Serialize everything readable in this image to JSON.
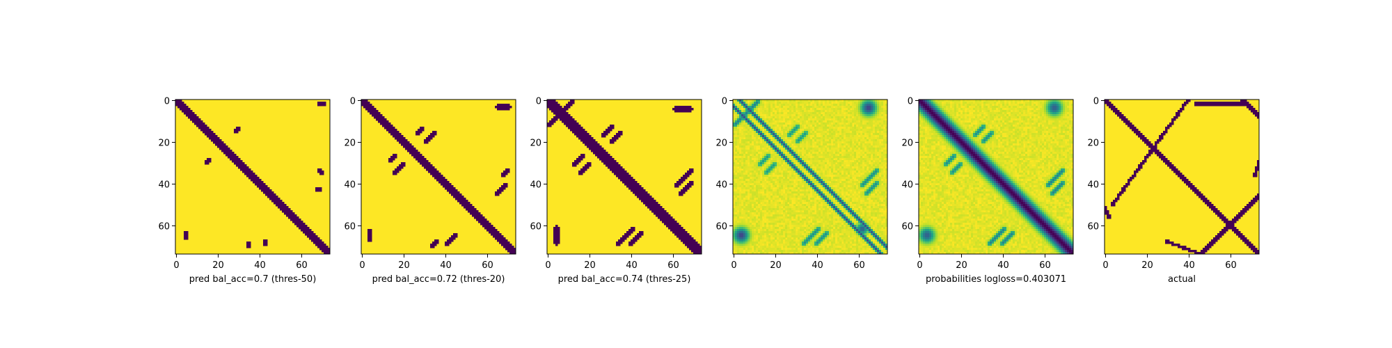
{
  "chart_data": [
    {
      "type": "heatmap",
      "variant": "binary",
      "xlabel": "pred bal_acc=0.7 (thres-50)",
      "xticks": [
        0,
        20,
        40,
        60
      ],
      "yticks": [
        0,
        20,
        40,
        60
      ],
      "xlim": [
        0,
        74
      ],
      "ylim": [
        74,
        0
      ],
      "grid_size": 74,
      "colors": {
        "high": "#fde725",
        "low": "#440154"
      },
      "diagonal_halfwidth": 2,
      "blobs": [
        [
          70,
          2,
          2,
          1
        ],
        [
          5,
          65,
          1.3,
          2.5
        ]
      ],
      "segments": [
        [
          29,
          15,
          30,
          14
        ],
        [
          16,
          29,
          15,
          30
        ],
        [
          69,
          34,
          70,
          35
        ],
        [
          68,
          43,
          69,
          43
        ],
        [
          35,
          69,
          35,
          70
        ],
        [
          43,
          68,
          43,
          69
        ]
      ]
    },
    {
      "type": "heatmap",
      "variant": "binary",
      "xlabel": "pred bal_acc=0.72 (thres-20)",
      "xticks": [
        0,
        20,
        40,
        60
      ],
      "yticks": [
        0,
        20,
        40,
        60
      ],
      "xlim": [
        0,
        74
      ],
      "ylim": [
        74,
        0
      ],
      "grid_size": 74,
      "colors": {
        "high": "#fde725",
        "low": "#440154"
      },
      "diagonal_halfwidth": 2.5,
      "blobs": [
        [
          68,
          3.5,
          3.5,
          1.5
        ],
        [
          4,
          65,
          1.5,
          3.5
        ]
      ],
      "segments": [
        [
          27,
          16,
          29,
          14
        ],
        [
          31,
          20,
          35,
          16
        ],
        [
          14,
          29,
          16,
          27
        ],
        [
          20,
          31,
          16,
          35
        ],
        [
          68,
          36,
          70,
          34
        ],
        [
          65,
          45,
          69,
          41
        ],
        [
          36,
          68,
          34,
          70
        ],
        [
          45,
          65,
          41,
          69
        ]
      ]
    },
    {
      "type": "heatmap",
      "variant": "binary",
      "xlabel": "pred bal_acc=0.74 (thres-25)",
      "xticks": [
        0,
        20,
        40,
        60
      ],
      "yticks": [
        0,
        20,
        40,
        60
      ],
      "xlim": [
        0,
        74
      ],
      "ylim": [
        74,
        0
      ],
      "grid_size": 74,
      "colors": {
        "high": "#fde725",
        "low": "#440154"
      },
      "diagonal_halfwidth": 3.5,
      "blobs": [
        [
          65,
          4.5,
          4.5,
          2
        ],
        [
          4.5,
          65,
          2,
          4.5
        ]
      ],
      "segments": [
        [
          6,
          7,
          12,
          1
        ],
        [
          7,
          6,
          1,
          12
        ],
        [
          27,
          17,
          31,
          13
        ],
        [
          17,
          27,
          13,
          31
        ],
        [
          31,
          20,
          35,
          16
        ],
        [
          20,
          31,
          16,
          35
        ],
        [
          62,
          41,
          69,
          34
        ],
        [
          41,
          62,
          34,
          69
        ],
        [
          64,
          45,
          69,
          40
        ],
        [
          45,
          64,
          40,
          69
        ]
      ]
    },
    {
      "type": "heatmap",
      "variant": "probability",
      "xlabel": "",
      "xticks": [
        0,
        20,
        40,
        60
      ],
      "yticks": [
        0,
        20,
        40,
        60
      ],
      "xlim": [
        0,
        74
      ],
      "ylim": [
        74,
        0
      ],
      "grid_size": 74,
      "colormap": "viridis",
      "diagonal_pair": [
        {
          "offset": 3,
          "strength": 0.75
        },
        {
          "offset": -3,
          "strength": 0.75
        }
      ],
      "blobs": [
        [
          65,
          4,
          4,
          0.8
        ],
        [
          4,
          65,
          4,
          0.8
        ],
        [
          62,
          62,
          3,
          0.7
        ]
      ],
      "segments": [
        [
          6,
          7,
          12,
          1,
          0.55
        ],
        [
          7,
          6,
          1,
          12,
          0.55
        ],
        [
          27,
          17,
          31,
          13,
          0.45
        ],
        [
          17,
          27,
          13,
          31,
          0.45
        ],
        [
          31,
          20,
          35,
          16,
          0.45
        ],
        [
          20,
          31,
          16,
          35,
          0.45
        ],
        [
          62,
          41,
          69,
          34,
          0.5
        ],
        [
          41,
          62,
          34,
          69,
          0.5
        ],
        [
          64,
          45,
          69,
          40,
          0.5
        ],
        [
          45,
          64,
          40,
          69,
          0.5
        ]
      ]
    },
    {
      "type": "heatmap",
      "variant": "probability",
      "xlabel": "probabilities logloss=0.403071",
      "xticks": [
        0,
        20,
        40,
        60
      ],
      "yticks": [
        0,
        20,
        40,
        60
      ],
      "xlim": [
        0,
        74
      ],
      "ylim": [
        74,
        0
      ],
      "grid_size": 74,
      "colormap": "viridis",
      "diagonal_halfwidth": 3,
      "blobs": [
        [
          65,
          4,
          4,
          0.7
        ],
        [
          4,
          65,
          4,
          0.7
        ]
      ],
      "segments": [
        [
          27,
          17,
          31,
          13,
          0.5
        ],
        [
          17,
          27,
          13,
          31,
          0.5
        ],
        [
          31,
          20,
          35,
          16,
          0.5
        ],
        [
          20,
          31,
          16,
          35,
          0.5
        ],
        [
          62,
          41,
          69,
          34,
          0.55
        ],
        [
          41,
          62,
          34,
          69,
          0.55
        ],
        [
          64,
          45,
          69,
          40,
          0.55
        ],
        [
          45,
          64,
          40,
          69,
          0.55
        ]
      ]
    },
    {
      "type": "heatmap",
      "variant": "binary",
      "xlabel": "actual",
      "xticks": [
        0,
        20,
        40,
        60
      ],
      "yticks": [
        0,
        20,
        40,
        60
      ],
      "xlim": [
        0,
        74
      ],
      "ylim": [
        74,
        0
      ],
      "grid_size": 74,
      "colors": {
        "high": "#fde725",
        "low": "#440154"
      },
      "diagonal_halfwidth": 1.3,
      "segments": [
        [
          1,
          1,
          54,
          54
        ],
        [
          56,
          56,
          73,
          73
        ],
        [
          4,
          50,
          40,
          0
        ],
        [
          74,
          46,
          46,
          74
        ],
        [
          2,
          56,
          0,
          52
        ],
        [
          46,
          74,
          30,
          68
        ],
        [
          44,
          2,
          66,
          2
        ],
        [
          66,
          0,
          74,
          8
        ],
        [
          74,
          30,
          72,
          36
        ]
      ]
    }
  ]
}
